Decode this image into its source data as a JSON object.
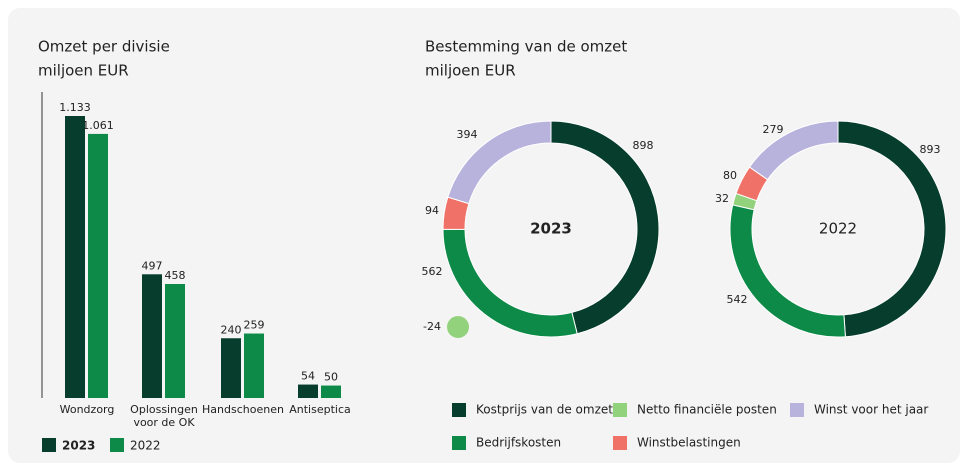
{
  "chart_data": [
    {
      "type": "bar",
      "title": "Omzet per divisie",
      "subtitle": "miljoen EUR",
      "categories": [
        "Wondzorg",
        "Oplossingen voor de OK",
        "Handschoenen",
        "Antiseptica"
      ],
      "series": [
        {
          "name": "2023",
          "color": "#063d2c",
          "values": [
            1133,
            497,
            240,
            54
          ],
          "value_labels": [
            "1.133",
            "497",
            "240",
            "54"
          ]
        },
        {
          "name": "2022",
          "color": "#0d8a47",
          "values": [
            1061,
            458,
            259,
            50
          ],
          "value_labels": [
            "1.061",
            "458",
            "259",
            "50"
          ]
        }
      ]
    },
    {
      "type": "donut",
      "title": "Bestemming van de omzet",
      "subtitle": "miljoen EUR",
      "categories": [
        "Kostprijs van de omzet",
        "Bedrijfskosten",
        "Netto financiële posten",
        "Winstbelastingen",
        "Winst voor het jaar"
      ],
      "colors": [
        "#063d2c",
        "#0d8a47",
        "#93d27d",
        "#f07167",
        "#b8b3dc"
      ],
      "series": [
        {
          "name": "2023",
          "values": [
            898,
            562,
            -24,
            94,
            394
          ]
        },
        {
          "name": "2022",
          "values": [
            893,
            542,
            32,
            80,
            279
          ]
        }
      ]
    }
  ]
}
